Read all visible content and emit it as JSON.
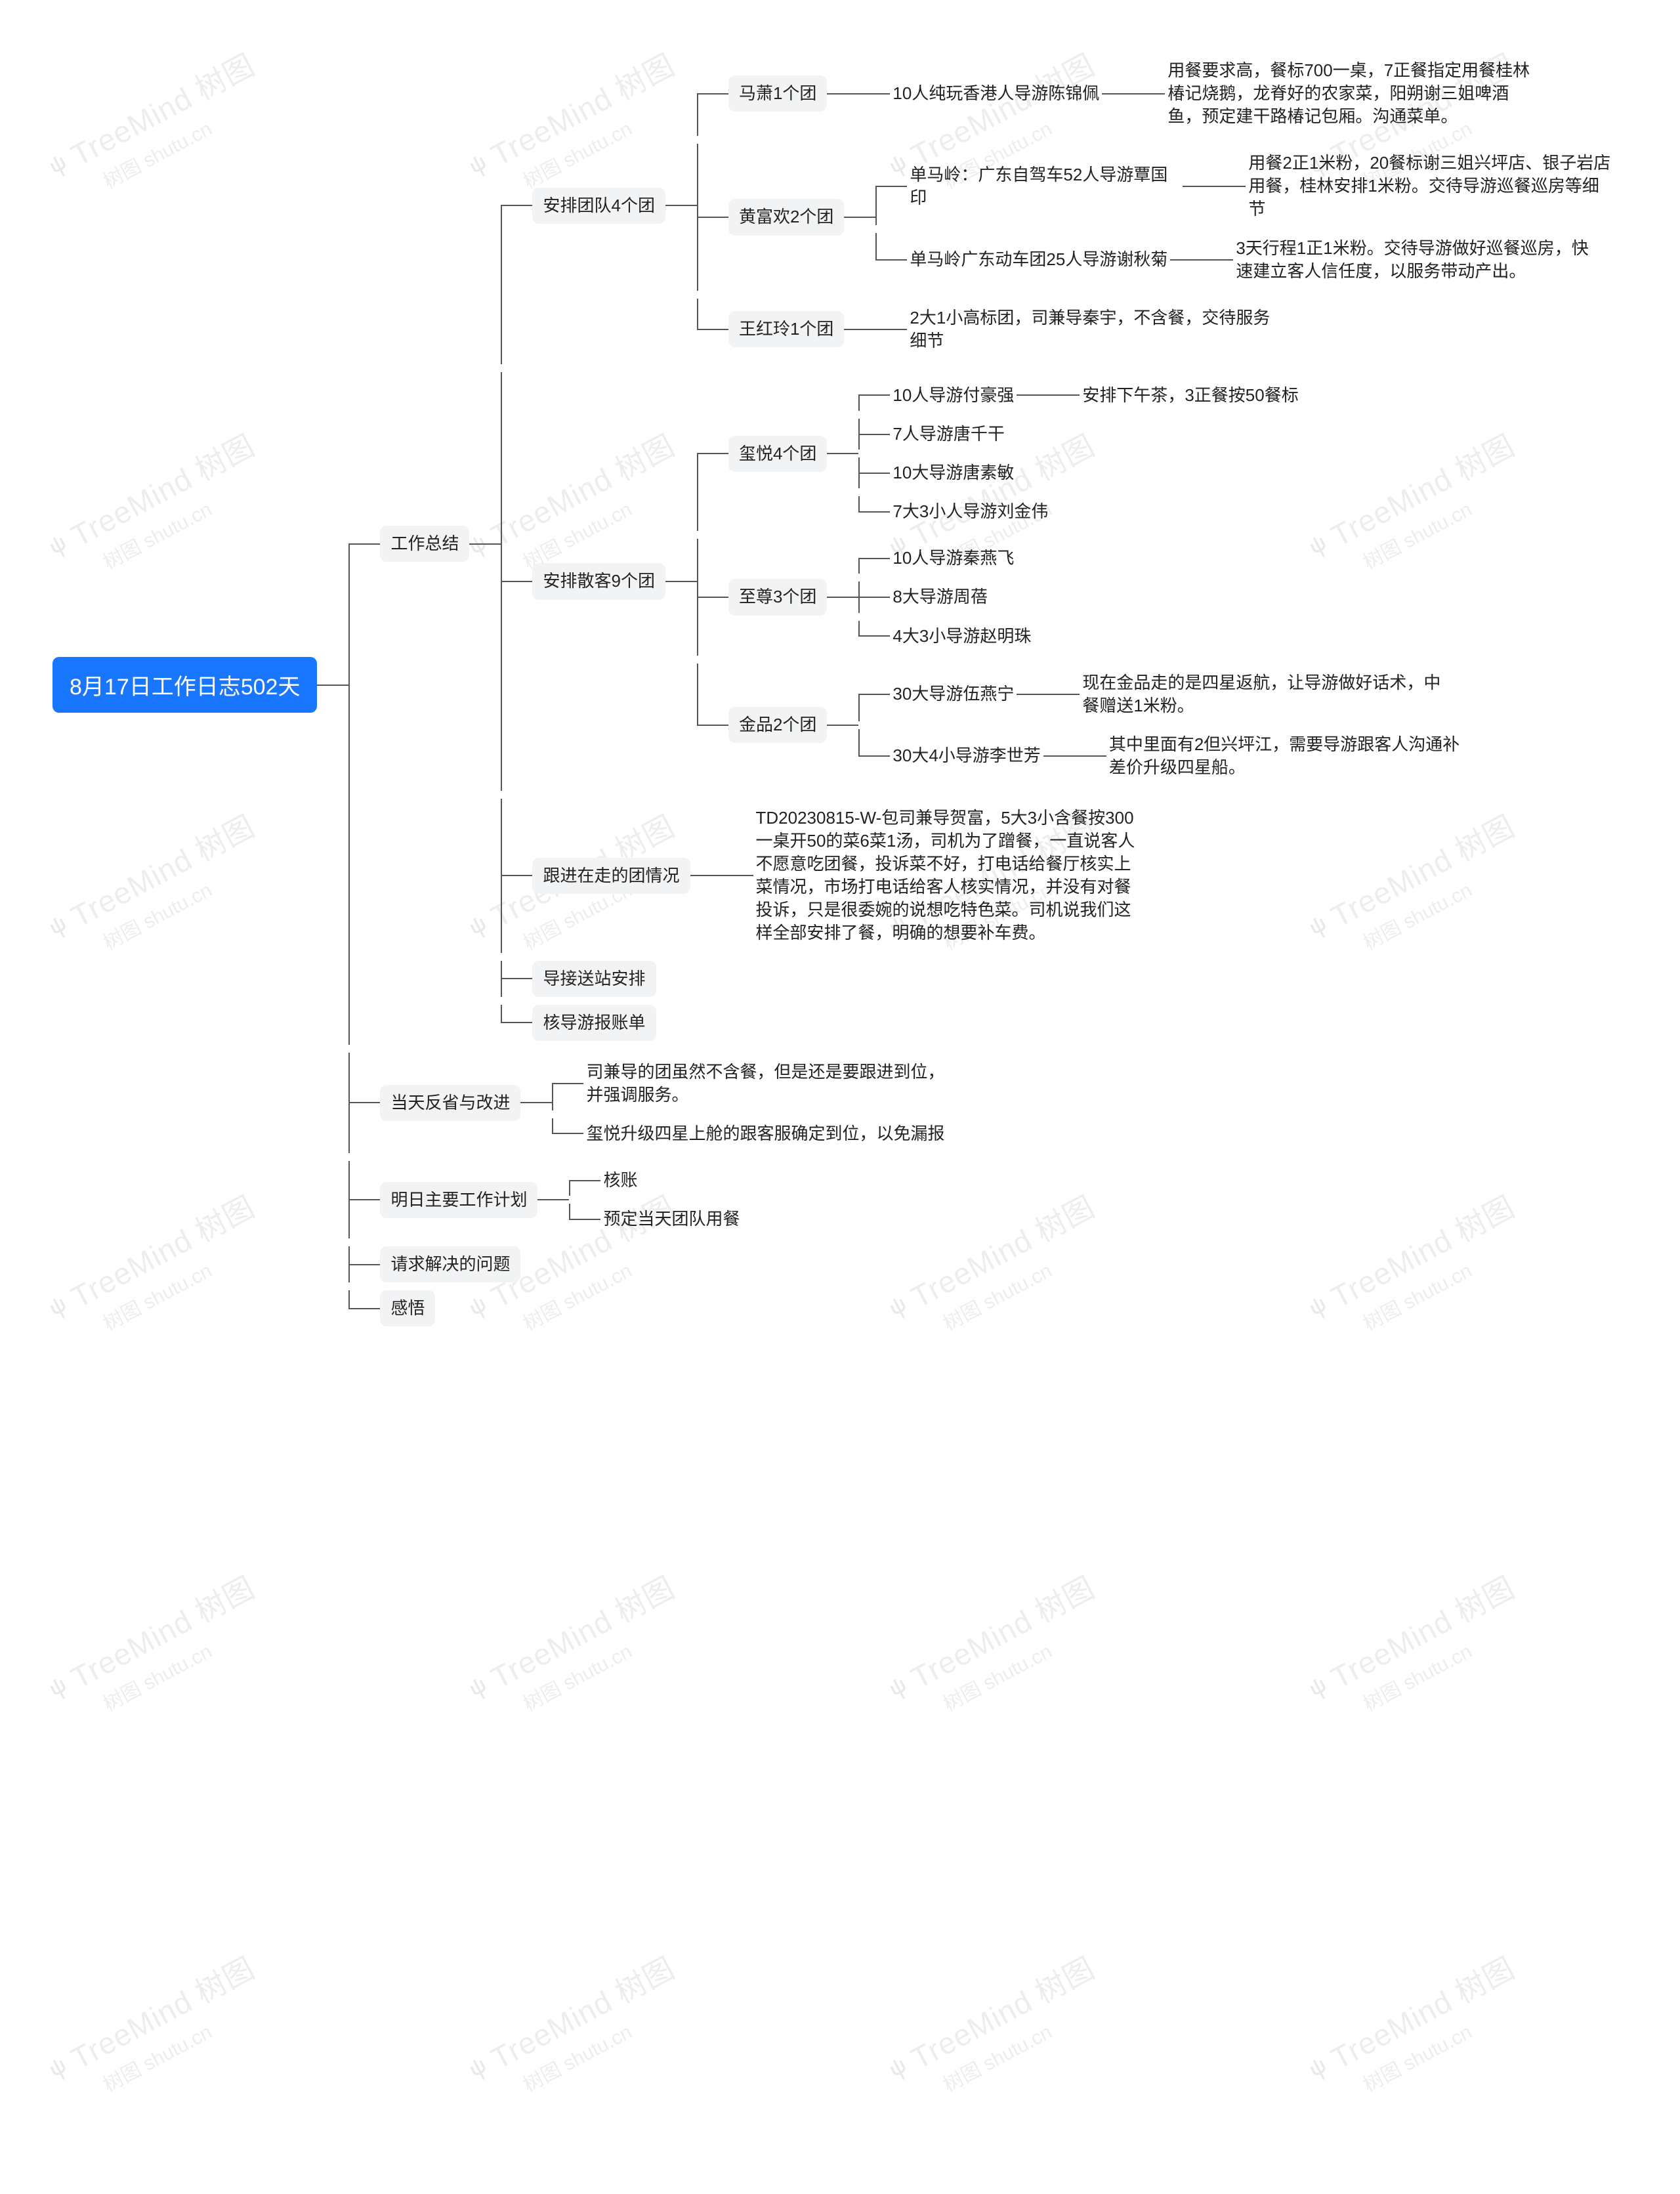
{
  "watermark": {
    "line1": "TreeMind 树图",
    "line2": "树图 shutu.cn"
  },
  "root": "8月17日工作日志502天",
  "colors": {
    "root_bg": "#1976ff",
    "root_fg": "#ffffff",
    "node_bg": "#f1f3f5",
    "line": "#555555",
    "text": "#222222"
  },
  "s1": {
    "label": "工作总结"
  },
  "s1a": {
    "label": "安排团队4个团"
  },
  "s1a1": {
    "label": "马萧1个团",
    "c1": "10人纯玩香港人导游陈锦佩",
    "c1n": "用餐要求高，餐标700一桌，7正餐指定用餐桂林椿记烧鹅，龙脊好的农家菜，阳朔谢三姐啤酒鱼，预定建干路椿记包厢。沟通菜单。"
  },
  "s1a2": {
    "label": "黄富欢2个团",
    "c1": "单马岭：广东自驾车52人导游覃国印",
    "c1n": "用餐2正1米粉，20餐标谢三姐兴坪店、银子岩店用餐，桂林安排1米粉。交待导游巡餐巡房等细节",
    "c2": "单马岭广东动车团25人导游谢秋菊",
    "c2n": "3天行程1正1米粉。交待导游做好巡餐巡房，快速建立客人信任度，以服务带动产出。"
  },
  "s1a3": {
    "label": "王红玲1个团",
    "c1": "2大1小高标团，司兼导秦宇，不含餐，交待服务细节"
  },
  "s1b": {
    "label": "安排散客9个团"
  },
  "s1b1": {
    "label": "玺悦4个团",
    "c1": "10人导游付豪强",
    "c1n": "安排下午茶，3正餐按50餐标",
    "c2": "7人导游唐千干",
    "c3": "10大导游唐素敏",
    "c4": "7大3小人导游刘金伟"
  },
  "s1b2": {
    "label": "至尊3个团",
    "c1": "10人导游秦燕飞",
    "c2": "8大导游周蓓",
    "c3": "4大3小导游赵明珠"
  },
  "s1b3": {
    "label": "金品2个团",
    "c1": "30大导游伍燕宁",
    "c1n": "现在金品走的是四星返航，让导游做好话术，中餐赠送1米粉。",
    "c2": "30大4小导游李世芳",
    "c2n": "其中里面有2但兴坪江，需要导游跟客人沟通补差价升级四星船。"
  },
  "s1c": {
    "label": "跟进在走的团情况",
    "note": "TD20230815-W-包司兼导贺富，5大3小含餐按300一桌开50的菜6菜1汤，司机为了蹭餐，一直说客人不愿意吃团餐，投诉菜不好，打电话给餐厅核实上菜情况，市场打电话给客人核实情况，并没有对餐投诉，只是很委婉的说想吃特色菜。司机说我们这样全部安排了餐，明确的想要补车费。"
  },
  "s1d": {
    "label": "导接送站安排"
  },
  "s1e": {
    "label": "核导游报账单"
  },
  "s2": {
    "label": "当天反省与改进",
    "c1": "司兼导的团虽然不含餐，但是还是要跟进到位，并强调服务。",
    "c2": "玺悦升级四星上舱的跟客服确定到位，以免漏报"
  },
  "s3": {
    "label": "明日主要工作计划",
    "c1": "核账",
    "c2": "预定当天团队用餐"
  },
  "s4": {
    "label": "请求解决的问题"
  },
  "s5": {
    "label": "感悟"
  }
}
